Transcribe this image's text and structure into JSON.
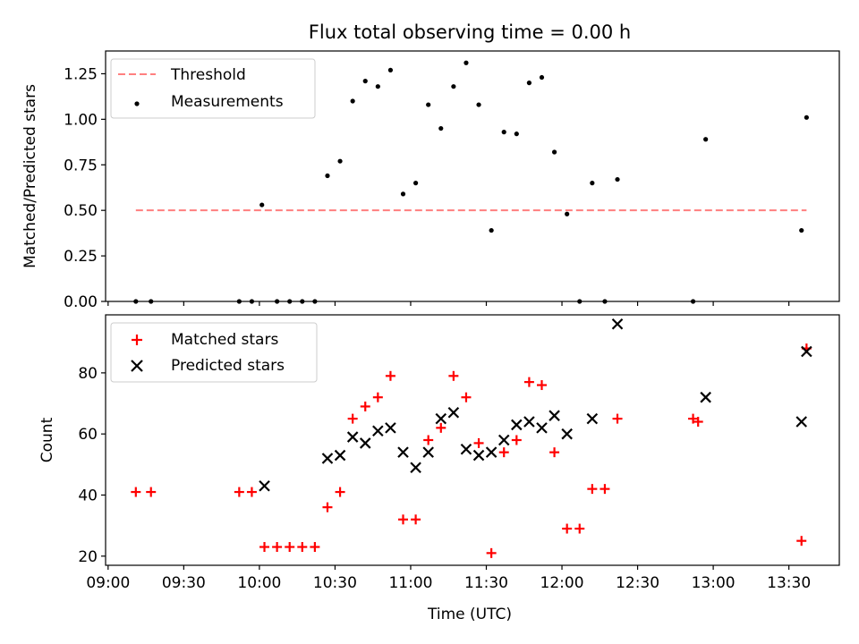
{
  "chart_data": [
    {
      "type": "scatter",
      "title": "Flux total observing time = 0.00 h",
      "ylabel": "Matched/Predicted stars",
      "xlabel": "",
      "ylim": [
        0,
        1.375
      ],
      "yticks": [
        0.0,
        0.25,
        0.5,
        0.75,
        1.0,
        1.25
      ],
      "ytick_labels": [
        "0.00",
        "0.25",
        "0.50",
        "0.75",
        "1.00",
        "1.25"
      ],
      "legend_position": "top-left",
      "series": [
        {
          "name": "Threshold",
          "kind": "dashed-line",
          "color": "#ff7f7f",
          "x": [
            "09:11",
            "13:37"
          ],
          "y": [
            0.5,
            0.5
          ]
        },
        {
          "name": "Measurements",
          "kind": "point",
          "color": "#000000",
          "x": [
            "09:11",
            "09:17",
            "09:52",
            "09:57",
            "10:01",
            "10:07",
            "10:12",
            "10:17",
            "10:22",
            "10:27",
            "10:32",
            "10:37",
            "10:42",
            "10:47",
            "10:52",
            "10:57",
            "11:02",
            "11:07",
            "11:12",
            "11:17",
            "11:22",
            "11:27",
            "11:32",
            "11:37",
            "11:42",
            "11:47",
            "11:52",
            "11:57",
            "12:02",
            "12:07",
            "12:12",
            "12:17",
            "12:22",
            "12:52",
            "12:57",
            "13:35",
            "13:37"
          ],
          "y": [
            0,
            0,
            0,
            0,
            0.53,
            0,
            0,
            0,
            0,
            0.69,
            0.77,
            1.1,
            1.21,
            1.18,
            1.27,
            0.59,
            0.65,
            1.08,
            0.95,
            1.18,
            1.31,
            1.08,
            0.39,
            0.93,
            0.92,
            1.2,
            1.23,
            0.82,
            0.48,
            0,
            0.65,
            0,
            0.67,
            0,
            0.89,
            0.39,
            1.01
          ]
        }
      ]
    },
    {
      "type": "scatter",
      "title": "",
      "ylabel": "Count",
      "xlabel": "Time (UTC)",
      "ylim": [
        17,
        99
      ],
      "yticks": [
        20,
        40,
        60,
        80
      ],
      "ytick_labels": [
        "20",
        "40",
        "60",
        "80"
      ],
      "xticks": [
        "09:00",
        "09:30",
        "10:00",
        "10:30",
        "11:00",
        "11:30",
        "12:00",
        "12:30",
        "13:00",
        "13:30"
      ],
      "legend_position": "top-left",
      "series": [
        {
          "name": "Matched stars",
          "marker": "plus",
          "color": "#ff0000",
          "x": [
            "09:11",
            "09:17",
            "09:52",
            "09:57",
            "10:02",
            "10:07",
            "10:12",
            "10:17",
            "10:22",
            "10:27",
            "10:32",
            "10:37",
            "10:42",
            "10:47",
            "10:52",
            "10:57",
            "11:02",
            "11:07",
            "11:12",
            "11:17",
            "11:22",
            "11:27",
            "11:32",
            "11:37",
            "11:42",
            "11:47",
            "11:52",
            "11:57",
            "12:02",
            "12:07",
            "12:12",
            "12:17",
            "12:22",
            "12:52",
            "12:54",
            "13:35",
            "13:37"
          ],
          "y": [
            41,
            41,
            41,
            41,
            23,
            23,
            23,
            23,
            23,
            36,
            41,
            65,
            69,
            72,
            79,
            32,
            32,
            58,
            62,
            79,
            72,
            57,
            21,
            54,
            58,
            77,
            76,
            54,
            29,
            29,
            42,
            42,
            65,
            65,
            64,
            25,
            88
          ]
        },
        {
          "name": "Predicted stars",
          "marker": "x",
          "color": "#000000",
          "x": [
            "10:02",
            "10:27",
            "10:32",
            "10:37",
            "10:42",
            "10:47",
            "10:52",
            "10:57",
            "11:02",
            "11:07",
            "11:12",
            "11:17",
            "11:22",
            "11:27",
            "11:32",
            "11:37",
            "11:42",
            "11:47",
            "11:52",
            "11:57",
            "12:02",
            "12:12",
            "12:22",
            "12:57",
            "13:35",
            "13:37"
          ],
          "y": [
            43,
            52,
            53,
            59,
            57,
            61,
            62,
            54,
            49,
            54,
            65,
            67,
            55,
            53,
            54,
            58,
            63,
            64,
            62,
            66,
            60,
            65,
            96,
            72,
            64,
            87
          ]
        }
      ]
    }
  ]
}
